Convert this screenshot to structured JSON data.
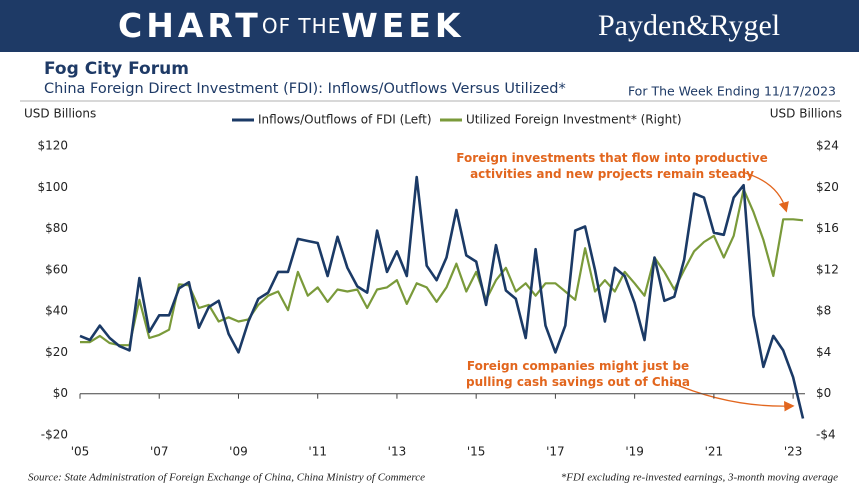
{
  "header": {
    "title_parts": [
      "CHART",
      "OF THE",
      "WEEK"
    ],
    "brand": "Payden&Rygel"
  },
  "chart_data": {
    "type": "line",
    "title": "Fog City Forum",
    "subtitle": "China Foreign Direct Investment (FDI): Inflows/Outflows Versus Utilized*",
    "date_note": "For The Week Ending 11/17/2023",
    "ylabel": "USD Billions",
    "y2label": "USD Billions",
    "x": [
      2005,
      2005.25,
      2005.5,
      2005.75,
      2006,
      2006.25,
      2006.5,
      2006.75,
      2007,
      2007.25,
      2007.5,
      2007.75,
      2008,
      2008.25,
      2008.5,
      2008.75,
      2009,
      2009.25,
      2009.5,
      2009.75,
      2010,
      2010.25,
      2010.5,
      2010.75,
      2011,
      2011.25,
      2011.5,
      2011.75,
      2012,
      2012.25,
      2012.5,
      2012.75,
      2013,
      2013.25,
      2013.5,
      2013.75,
      2014,
      2014.25,
      2014.5,
      2014.75,
      2015,
      2015.25,
      2015.5,
      2015.75,
      2016,
      2016.25,
      2016.5,
      2016.75,
      2017,
      2017.25,
      2017.5,
      2017.75,
      2018,
      2018.25,
      2018.5,
      2018.75,
      2019,
      2019.25,
      2019.5,
      2019.75,
      2020,
      2020.25,
      2020.5,
      2020.75,
      2021,
      2021.25,
      2021.5,
      2021.75,
      2022,
      2022.25,
      2022.5,
      2022.75,
      2023,
      2023.25
    ],
    "series": [
      {
        "name": "Inflows/Outflows of FDI (Left)",
        "color": "#1b3a66",
        "axis": "y",
        "values": [
          28,
          26,
          33,
          27,
          23,
          21,
          56,
          30,
          38,
          38,
          51,
          54,
          32,
          42,
          45,
          29,
          20,
          35,
          46,
          49,
          59,
          59,
          75,
          74,
          73,
          57,
          76,
          61,
          52,
          49,
          79,
          59,
          69,
          57,
          105,
          62,
          55,
          66,
          89,
          67,
          64,
          43,
          72,
          50,
          46,
          27,
          70,
          33,
          20,
          33,
          79,
          81,
          60,
          35,
          61,
          57,
          44,
          26,
          66,
          45,
          47,
          65,
          97,
          95,
          78,
          77,
          95,
          101,
          38,
          13,
          28,
          21,
          8,
          -12
        ]
      },
      {
        "name": "Utilized Foreign Investment* (Right)",
        "color": "#7a9a3a",
        "axis": "y2",
        "values": [
          5.0,
          5.0,
          5.6,
          4.9,
          4.7,
          4.7,
          9.1,
          5.4,
          5.7,
          6.2,
          10.6,
          10.5,
          8.3,
          8.6,
          7.0,
          7.4,
          7.0,
          7.2,
          8.6,
          9.5,
          9.9,
          8.1,
          11.8,
          9.5,
          10.3,
          8.9,
          10.1,
          9.9,
          10.1,
          8.3,
          10.1,
          10.3,
          11.0,
          8.7,
          10.7,
          10.3,
          8.9,
          10.3,
          12.6,
          9.9,
          11.8,
          9.1,
          11.0,
          12.2,
          9.9,
          10.7,
          9.5,
          10.7,
          10.7,
          9.9,
          9.1,
          14.1,
          9.9,
          11.0,
          9.9,
          11.8,
          10.7,
          9.5,
          13.2,
          11.8,
          10.1,
          12.0,
          13.8,
          14.7,
          15.3,
          13.2,
          15.3,
          19.8,
          17.6,
          14.9,
          11.4,
          16.9,
          16.9,
          16.8
        ]
      }
    ],
    "xlim": [
      2005,
      2023.3
    ],
    "xticks": [
      {
        "value": 2005,
        "label": "'05"
      },
      {
        "value": 2007,
        "label": "'07"
      },
      {
        "value": 2009,
        "label": "'09"
      },
      {
        "value": 2011,
        "label": "'11"
      },
      {
        "value": 2013,
        "label": "'13"
      },
      {
        "value": 2015,
        "label": "'15"
      },
      {
        "value": 2017,
        "label": "'17"
      },
      {
        "value": 2019,
        "label": "'19"
      },
      {
        "value": 2021,
        "label": "'21"
      },
      {
        "value": 2023,
        "label": "'23"
      }
    ],
    "ylim": [
      -20,
      120
    ],
    "yticks": [
      {
        "value": -20,
        "label": "-$20"
      },
      {
        "value": 0,
        "label": "$0"
      },
      {
        "value": 20,
        "label": "$20"
      },
      {
        "value": 40,
        "label": "$40"
      },
      {
        "value": 60,
        "label": "$60"
      },
      {
        "value": 80,
        "label": "$80"
      },
      {
        "value": 100,
        "label": "$100"
      },
      {
        "value": 120,
        "label": "$120"
      }
    ],
    "y2lim": [
      -4,
      24
    ],
    "y2ticks": [
      {
        "value": -4,
        "label": "-$4"
      },
      {
        "value": 0,
        "label": "$0"
      },
      {
        "value": 4,
        "label": "$4"
      },
      {
        "value": 8,
        "label": "$8"
      },
      {
        "value": 12,
        "label": "$12"
      },
      {
        "value": 16,
        "label": "$16"
      },
      {
        "value": 20,
        "label": "$20"
      },
      {
        "value": 24,
        "label": "$24"
      }
    ],
    "annotations": [
      [
        "Foreign investments that flow into productive",
        "activities and new projects remain steady"
      ],
      [
        "Foreign companies might just be",
        "pulling cash savings out of China"
      ]
    ],
    "annotation_color": "#e2661e"
  },
  "footer": {
    "source": "Source: State Administration of Foreign Exchange of China, China Ministry of Commerce",
    "note": "*FDI excluding re-invested earnings, 3-month moving average"
  }
}
